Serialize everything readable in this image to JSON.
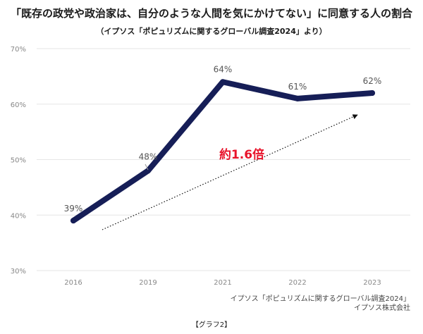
{
  "title": "「既存の政党や政治家は、自分のような人間を気にかけてない」に同意する人の割合",
  "subtitle": "（イプソス「ポピュリズムに関するグローバル調査2024」より）",
  "source": {
    "line1": "イプソス「ポピュリズムに関するグローバル調査2024」",
    "line2": "イプソス株式会社"
  },
  "caption": "【グラフ2】",
  "chart_data": {
    "type": "line",
    "categories": [
      "2016",
      "2019",
      "2021",
      "2022",
      "2023"
    ],
    "series": [
      {
        "values": [
          39,
          48,
          64,
          61,
          62
        ],
        "labels": [
          "39%",
          "48%",
          "64%",
          "61%",
          "62%"
        ]
      }
    ],
    "y_ticks": [
      "30%",
      "40%",
      "50%",
      "60%",
      "70%"
    ],
    "ylim": [
      30,
      70
    ],
    "grid": true,
    "annotation": {
      "text": "約1.6倍",
      "color": "#e8142b"
    },
    "colors": {
      "line": "#161e57",
      "grid": "#e6e6e6",
      "tick": "#888888",
      "label": "#555555"
    }
  }
}
